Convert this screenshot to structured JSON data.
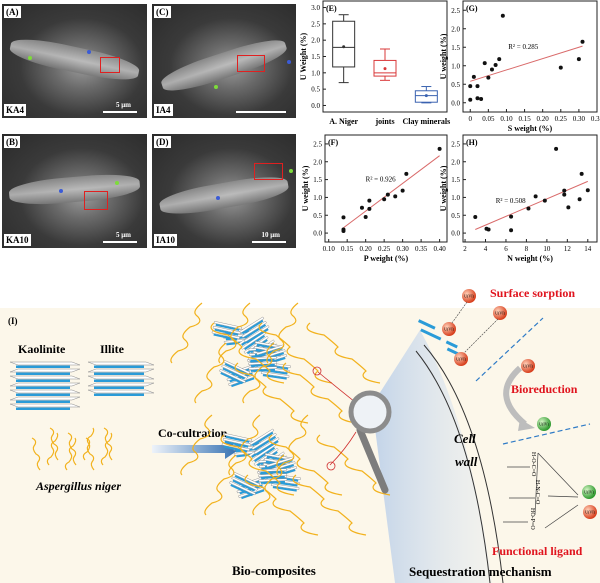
{
  "sem_panels": [
    {
      "panel": "(A)",
      "sample": "KA4",
      "scale": "5 μm"
    },
    {
      "panel": "(C)",
      "sample": "IA4",
      "scale": ""
    },
    {
      "panel": "(B)",
      "sample": "KA10",
      "scale": "5 μm"
    },
    {
      "panel": "(D)",
      "sample": "IA10",
      "scale": "10 μm"
    }
  ],
  "marker_colors": {
    "spot1": "#3b5bd6",
    "spot2": "#7ddc3a",
    "roi": "#e02020"
  },
  "chart_data": [
    {
      "id": "E",
      "type": "box",
      "panel": "(E)",
      "ylabel": "U Weight (%)",
      "ylim": [
        -0.2,
        3.2
      ],
      "yticks": [
        0.0,
        0.5,
        1.0,
        1.5,
        2.0,
        2.5,
        3.0
      ],
      "categories": [
        "A. Niger",
        "joints",
        "Clay minerals"
      ],
      "boxes": [
        {
          "min": 0.7,
          "q1": 1.18,
          "median": 1.78,
          "q3": 2.58,
          "max": 2.78,
          "mean": 1.8,
          "color": "#333333"
        },
        {
          "min": 0.77,
          "q1": 0.9,
          "median": 1.0,
          "q3": 1.38,
          "max": 1.73,
          "mean": 1.13,
          "color": "#d9383a"
        },
        {
          "min": 0.08,
          "q1": 0.1,
          "median": 0.3,
          "q3": 0.45,
          "max": 0.58,
          "mean": 0.3,
          "color": "#3a62b0"
        }
      ]
    },
    {
      "id": "G",
      "type": "scatter",
      "panel": "(G)",
      "xlabel": "S weight (%)",
      "ylabel": "U weight (%)",
      "xlim": [
        -0.02,
        0.35
      ],
      "ylim": [
        -0.25,
        2.75
      ],
      "xticks": [
        0.0,
        0.05,
        0.1,
        0.15,
        0.2,
        0.25,
        0.3,
        0.35
      ],
      "yticks": [
        0.0,
        0.5,
        1.0,
        1.5,
        2.0,
        2.5
      ],
      "annotation": "R² = 0.285",
      "points": [
        [
          0,
          0.45
        ],
        [
          0,
          0.08
        ],
        [
          0.01,
          0.7
        ],
        [
          0.02,
          0.45
        ],
        [
          0.02,
          0.12
        ],
        [
          0.03,
          0.1
        ],
        [
          0.04,
          1.07
        ],
        [
          0.05,
          0.68
        ],
        [
          0.06,
          0.9
        ],
        [
          0.07,
          1.02
        ],
        [
          0.08,
          1.18
        ],
        [
          0.09,
          2.35
        ],
        [
          0.25,
          0.95
        ],
        [
          0.3,
          1.18
        ],
        [
          0.31,
          1.65
        ]
      ],
      "fit": [
        [
          0,
          0.58
        ],
        [
          0.31,
          1.53
        ]
      ]
    },
    {
      "id": "F",
      "type": "scatter",
      "panel": "(F)",
      "xlabel": "P weight (%)",
      "ylabel": "U weight (%)",
      "xlim": [
        0.09,
        0.42
      ],
      "ylim": [
        -0.25,
        2.75
      ],
      "xticks": [
        0.1,
        0.15,
        0.2,
        0.25,
        0.3,
        0.35,
        0.4
      ],
      "yticks": [
        0.0,
        0.5,
        1.0,
        1.5,
        2.0,
        2.5
      ],
      "annotation": "R² = 0.926",
      "points": [
        [
          0.14,
          0.44
        ],
        [
          0.14,
          0.1
        ],
        [
          0.14,
          0.06
        ],
        [
          0.19,
          0.71
        ],
        [
          0.2,
          0.45
        ],
        [
          0.21,
          0.91
        ],
        [
          0.21,
          0.68
        ],
        [
          0.25,
          0.95
        ],
        [
          0.26,
          1.08
        ],
        [
          0.28,
          1.03
        ],
        [
          0.3,
          1.19
        ],
        [
          0.31,
          1.66
        ],
        [
          0.4,
          2.36
        ]
      ],
      "fit": [
        [
          0.14,
          0.15
        ],
        [
          0.4,
          2.17
        ]
      ]
    },
    {
      "id": "H",
      "type": "scatter",
      "panel": "(H)",
      "xlabel": "N weight (%)",
      "ylabel": "U weight (%)",
      "xlim": [
        1.8,
        14.9
      ],
      "ylim": [
        -0.25,
        2.75
      ],
      "xticks": [
        2,
        4,
        6,
        8,
        10,
        12,
        14
      ],
      "yticks": [
        0.0,
        0.5,
        1.0,
        1.5,
        2.0,
        2.5
      ],
      "annotation": "R² = 0.508",
      "points": [
        [
          3,
          0.45
        ],
        [
          4.1,
          0.12
        ],
        [
          4.3,
          0.1
        ],
        [
          6.5,
          0.46
        ],
        [
          6.5,
          0.08
        ],
        [
          8.2,
          0.69
        ],
        [
          8.9,
          1.03
        ],
        [
          9.8,
          0.91
        ],
        [
          10.9,
          2.36
        ],
        [
          11.7,
          1.08
        ],
        [
          11.7,
          1.19
        ],
        [
          12.1,
          0.72
        ],
        [
          13.2,
          0.95
        ],
        [
          13.4,
          1.66
        ],
        [
          14,
          1.2
        ]
      ],
      "fit": [
        [
          3,
          0.1
        ],
        [
          14,
          1.45
        ]
      ]
    }
  ],
  "diagram": {
    "panel": "(I)",
    "kaolinite": "Kaolinite",
    "illite": "Illite",
    "fungus": "Aspergillus niger",
    "process": "Co-cultration",
    "product": "Bio-composites",
    "mechanism_title": "Sequestration mechanism",
    "cell_wall": [
      "Cell",
      "wall"
    ],
    "surface_sorption": "Surface sorption",
    "bioreduction": "Bioreduction",
    "functional_ligand": "Functional ligand",
    "u6": "U(VI)",
    "u4": "U(IV)",
    "ligands": [
      "H-O-C=O",
      "H-N-C=O",
      "HO-P=O"
    ],
    "colors": {
      "sheet": "#2a9bd8",
      "fungus": "#f2b21d",
      "label_red": "#e0141e",
      "background": "#fcf7ea",
      "u6": "#e8502e",
      "u4": "#3cae3c"
    }
  }
}
